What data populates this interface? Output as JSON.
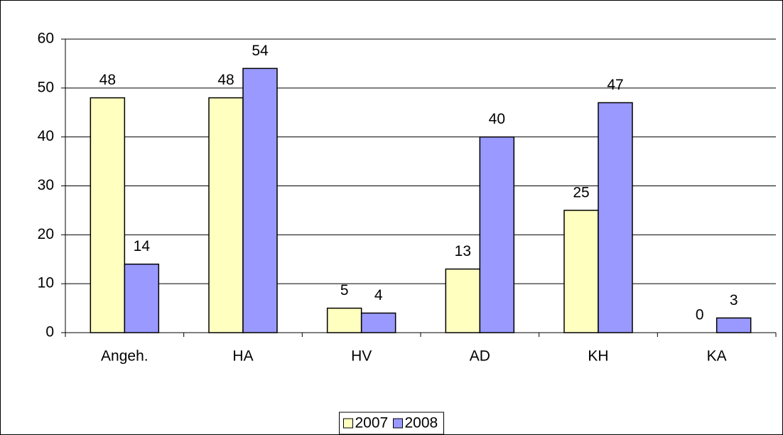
{
  "chart_data": {
    "type": "bar",
    "categories": [
      "Angeh.",
      "HA",
      "HV",
      "AD",
      "KH",
      "KA"
    ],
    "series": [
      {
        "name": "2007",
        "color": "#ffffc0",
        "values": [
          48,
          48,
          5,
          13,
          25,
          0
        ]
      },
      {
        "name": "2008",
        "color": "#9999ff",
        "values": [
          14,
          54,
          4,
          40,
          47,
          3
        ]
      }
    ],
    "ylim": [
      0,
      60
    ],
    "yticks": [
      0,
      10,
      20,
      30,
      40,
      50,
      60
    ],
    "grid": true,
    "legend": "bottom"
  }
}
